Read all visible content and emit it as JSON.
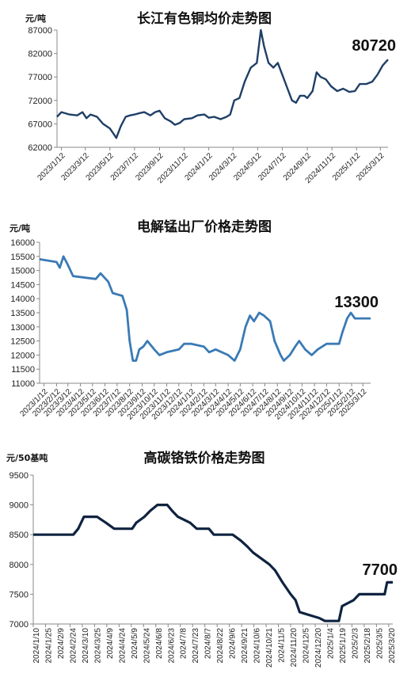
{
  "chart_data": [
    {
      "type": "line",
      "title": "长江有色铜均价走势图",
      "unit": "元/吨",
      "color": "#1f3f66",
      "last_label": "80720",
      "ylim": [
        62000,
        87000
      ],
      "yticks": [
        62000,
        67000,
        72000,
        77000,
        82000,
        87000
      ],
      "xticks": [
        "2023/1/12",
        "2023/3/12",
        "2023/5/12",
        "2023/7/12",
        "2023/9/12",
        "2023/11/12",
        "2024/1/12",
        "2024/3/12",
        "2024/5/12",
        "2024/7/12",
        "2024/9/12",
        "2024/11/12",
        "2025/1/12",
        "2025/3/12"
      ],
      "x_start": "2023/1/1",
      "x_end": "2025/3/31",
      "series": [
        {
          "points": [
            [
              "2023/1/1",
              68500
            ],
            [
              "2023/1/12",
              69500
            ],
            [
              "2023/2/1",
              69000
            ],
            [
              "2023/2/20",
              68800
            ],
            [
              "2023/3/5",
              69500
            ],
            [
              "2023/3/15",
              68200
            ],
            [
              "2023/3/25",
              69000
            ],
            [
              "2023/4/10",
              68500
            ],
            [
              "2023/4/25",
              67000
            ],
            [
              "2023/5/12",
              66000
            ],
            [
              "2023/5/20",
              65000
            ],
            [
              "2023/5/28",
              64000
            ],
            [
              "2023/6/8",
              66500
            ],
            [
              "2023/6/20",
              68500
            ],
            [
              "2023/7/1",
              68800
            ],
            [
              "2023/7/12",
              69000
            ],
            [
              "2023/7/25",
              69300
            ],
            [
              "2023/8/5",
              69500
            ],
            [
              "2023/8/20",
              68800
            ],
            [
              "2023/9/1",
              69500
            ],
            [
              "2023/9/12",
              69800
            ],
            [
              "2023/9/25",
              68200
            ],
            [
              "2023/10/10",
              67500
            ],
            [
              "2023/10/20",
              66800
            ],
            [
              "2023/11/1",
              67200
            ],
            [
              "2023/11/12",
              68000
            ],
            [
              "2023/12/1",
              68200
            ],
            [
              "2023/12/15",
              68800
            ],
            [
              "2024/1/1",
              69000
            ],
            [
              "2024/1/12",
              68300
            ],
            [
              "2024/1/25",
              68500
            ],
            [
              "2024/2/10",
              68000
            ],
            [
              "2024/2/25",
              68500
            ],
            [
              "2024/3/5",
              69000
            ],
            [
              "2024/3/15",
              72000
            ],
            [
              "2024/3/28",
              72500
            ],
            [
              "2024/4/10",
              76000
            ],
            [
              "2024/4/25",
              79000
            ],
            [
              "2024/5/10",
              80000
            ],
            [
              "2024/5/20",
              87000
            ],
            [
              "2024/5/28",
              83500
            ],
            [
              "2024/6/8",
              80000
            ],
            [
              "2024/6/20",
              79000
            ],
            [
              "2024/7/1",
              80000
            ],
            [
              "2024/7/12",
              77500
            ],
            [
              "2024/7/25",
              74500
            ],
            [
              "2024/8/5",
              72000
            ],
            [
              "2024/8/15",
              71500
            ],
            [
              "2024/8/25",
              73000
            ],
            [
              "2024/9/5",
              73000
            ],
            [
              "2024/9/12",
              72500
            ],
            [
              "2024/9/25",
              74000
            ],
            [
              "2024/10/5",
              78000
            ],
            [
              "2024/10/15",
              77000
            ],
            [
              "2024/10/28",
              76500
            ],
            [
              "2024/11/10",
              75000
            ],
            [
              "2024/11/25",
              74000
            ],
            [
              "2024/12/10",
              74500
            ],
            [
              "2024/12/25",
              73800
            ],
            [
              "2025/1/8",
              74000
            ],
            [
              "2025/1/20",
              75500
            ],
            [
              "2025/2/5",
              75500
            ],
            [
              "2025/2/20",
              76000
            ],
            [
              "2025/3/5",
              77500
            ],
            [
              "2025/3/18",
              79500
            ],
            [
              "2025/3/31",
              80720
            ]
          ]
        }
      ]
    },
    {
      "type": "line",
      "title": "电解锰出厂价格走势图",
      "unit": "元/吨",
      "color": "#3a7ab5",
      "last_label": "13300",
      "ylim": [
        11000,
        16000
      ],
      "yticks": [
        11000,
        11500,
        12000,
        12500,
        13000,
        13500,
        14000,
        14500,
        15000,
        15500,
        16000
      ],
      "xticks": [
        "2023/1/12",
        "2023/2/12",
        "2023/3/12",
        "2023/4/12",
        "2023/5/12",
        "2023/6/12",
        "2023/7/12",
        "2023/8/12",
        "2023/9/12",
        "2023/10/12",
        "2023/11/12",
        "2023/12/12",
        "2024/1/12",
        "2024/2/12",
        "2024/3/12",
        "2024/4/12",
        "2024/5/12",
        "2024/6/12",
        "2024/7/12",
        "2024/8/12",
        "2024/9/12",
        "2024/10/12",
        "2024/11/12",
        "2024/12/12",
        "2025/1/12",
        "2025/2/12",
        "2025/3/12"
      ],
      "x_start": "2023/1/1",
      "x_end": "2025/3/31",
      "series": [
        {
          "points": [
            [
              "2023/1/1",
              15400
            ],
            [
              "2023/2/12",
              15300
            ],
            [
              "2023/2/20",
              15100
            ],
            [
              "2023/3/1",
              15500
            ],
            [
              "2023/3/12",
              15200
            ],
            [
              "2023/3/25",
              14800
            ],
            [
              "2023/5/20",
              14700
            ],
            [
              "2023/6/1",
              14900
            ],
            [
              "2023/6/20",
              14600
            ],
            [
              "2023/7/1",
              14200
            ],
            [
              "2023/7/25",
              14100
            ],
            [
              "2023/8/5",
              13600
            ],
            [
              "2023/8/12",
              12500
            ],
            [
              "2023/8/20",
              11800
            ],
            [
              "2023/8/28",
              11800
            ],
            [
              "2023/9/5",
              12200
            ],
            [
              "2023/9/15",
              12300
            ],
            [
              "2023/9/25",
              12500
            ],
            [
              "2023/10/12",
              12200
            ],
            [
              "2023/10/25",
              12000
            ],
            [
              "2023/11/12",
              12100
            ],
            [
              "2023/12/12",
              12200
            ],
            [
              "2023/12/25",
              12400
            ],
            [
              "2024/1/12",
              12400
            ],
            [
              "2024/2/12",
              12300
            ],
            [
              "2024/2/25",
              12100
            ],
            [
              "2024/3/12",
              12200
            ],
            [
              "2024/4/12",
              12000
            ],
            [
              "2024/4/28",
              11800
            ],
            [
              "2024/5/12",
              12200
            ],
            [
              "2024/5/25",
              13000
            ],
            [
              "2024/6/5",
              13400
            ],
            [
              "2024/6/15",
              13200
            ],
            [
              "2024/6/28",
              13500
            ],
            [
              "2024/7/10",
              13400
            ],
            [
              "2024/7/25",
              13200
            ],
            [
              "2024/8/5",
              12500
            ],
            [
              "2024/8/20",
              12000
            ],
            [
              "2024/8/28",
              11800
            ],
            [
              "2024/9/12",
              12000
            ],
            [
              "2024/9/25",
              12300
            ],
            [
              "2024/10/5",
              12500
            ],
            [
              "2024/10/20",
              12200
            ],
            [
              "2024/11/5",
              12000
            ],
            [
              "2024/11/20",
              12200
            ],
            [
              "2024/12/12",
              12400
            ],
            [
              "2025/1/12",
              12400
            ],
            [
              "2025/1/20",
              12800
            ],
            [
              "2025/2/1",
              13300
            ],
            [
              "2025/2/10",
              13500
            ],
            [
              "2025/2/20",
              13300
            ],
            [
              "2025/3/31",
              13300
            ]
          ]
        }
      ]
    },
    {
      "type": "line",
      "title": "高碳铬铁价格走势图",
      "unit": "元/50基吨",
      "color": "#0f2340",
      "last_label": "7700",
      "ylim": [
        7000,
        9500
      ],
      "yticks": [
        7000,
        7500,
        8000,
        8500,
        9000,
        9500
      ],
      "xticks": [
        "2024/1/10",
        "2024/1/25",
        "2024/2/9",
        "2024/2/24",
        "2024/3/10",
        "2024/3/25",
        "2024/4/9",
        "2024/4/24",
        "2024/5/9",
        "2024/5/24",
        "2024/6/8",
        "2024/6/23",
        "2024/7/8",
        "2024/7/23",
        "2024/8/7",
        "2024/8/22",
        "2024/9/6",
        "2024/9/21",
        "2024/10/6",
        "2024/10/21",
        "2024/11/5",
        "2024/11/20",
        "2024/12/5",
        "2024/12/20",
        "2025/1/4",
        "2025/1/19",
        "2025/2/3",
        "2025/2/18",
        "2025/3/5",
        "2025/3/20"
      ],
      "x_start": "2024/1/10",
      "x_end": "2025/3/25",
      "series": [
        {
          "points": [
            [
              "2024/1/10",
              8500
            ],
            [
              "2024/2/28",
              8500
            ],
            [
              "2024/3/5",
              8600
            ],
            [
              "2024/3/12",
              8800
            ],
            [
              "2024/3/28",
              8800
            ],
            [
              "2024/4/8",
              8700
            ],
            [
              "2024/4/18",
              8600
            ],
            [
              "2024/5/10",
              8600
            ],
            [
              "2024/5/15",
              8700
            ],
            [
              "2024/5/25",
              8800
            ],
            [
              "2024/6/1",
              8900
            ],
            [
              "2024/6/10",
              9000
            ],
            [
              "2024/6/22",
              9000
            ],
            [
              "2024/6/28",
              8900
            ],
            [
              "2024/7/5",
              8800
            ],
            [
              "2024/7/20",
              8700
            ],
            [
              "2024/7/28",
              8600
            ],
            [
              "2024/8/12",
              8600
            ],
            [
              "2024/8/18",
              8500
            ],
            [
              "2024/9/10",
              8500
            ],
            [
              "2024/9/20",
              8400
            ],
            [
              "2024/9/28",
              8300
            ],
            [
              "2024/10/5",
              8200
            ],
            [
              "2024/10/15",
              8100
            ],
            [
              "2024/10/25",
              8000
            ],
            [
              "2024/11/1",
              7900
            ],
            [
              "2024/11/10",
              7700
            ],
            [
              "2024/11/20",
              7500
            ],
            [
              "2024/11/26",
              7400
            ],
            [
              "2024/12/1",
              7200
            ],
            [
              "2024/12/25",
              7100
            ],
            [
              "2025/1/1",
              7050
            ],
            [
              "2025/1/18",
              7050
            ],
            [
              "2025/1/22",
              7300
            ],
            [
              "2025/2/5",
              7400
            ],
            [
              "2025/2/12",
              7500
            ],
            [
              "2025/3/15",
              7500
            ],
            [
              "2025/3/18",
              7700
            ],
            [
              "2025/3/25",
              7700
            ]
          ]
        }
      ]
    }
  ]
}
